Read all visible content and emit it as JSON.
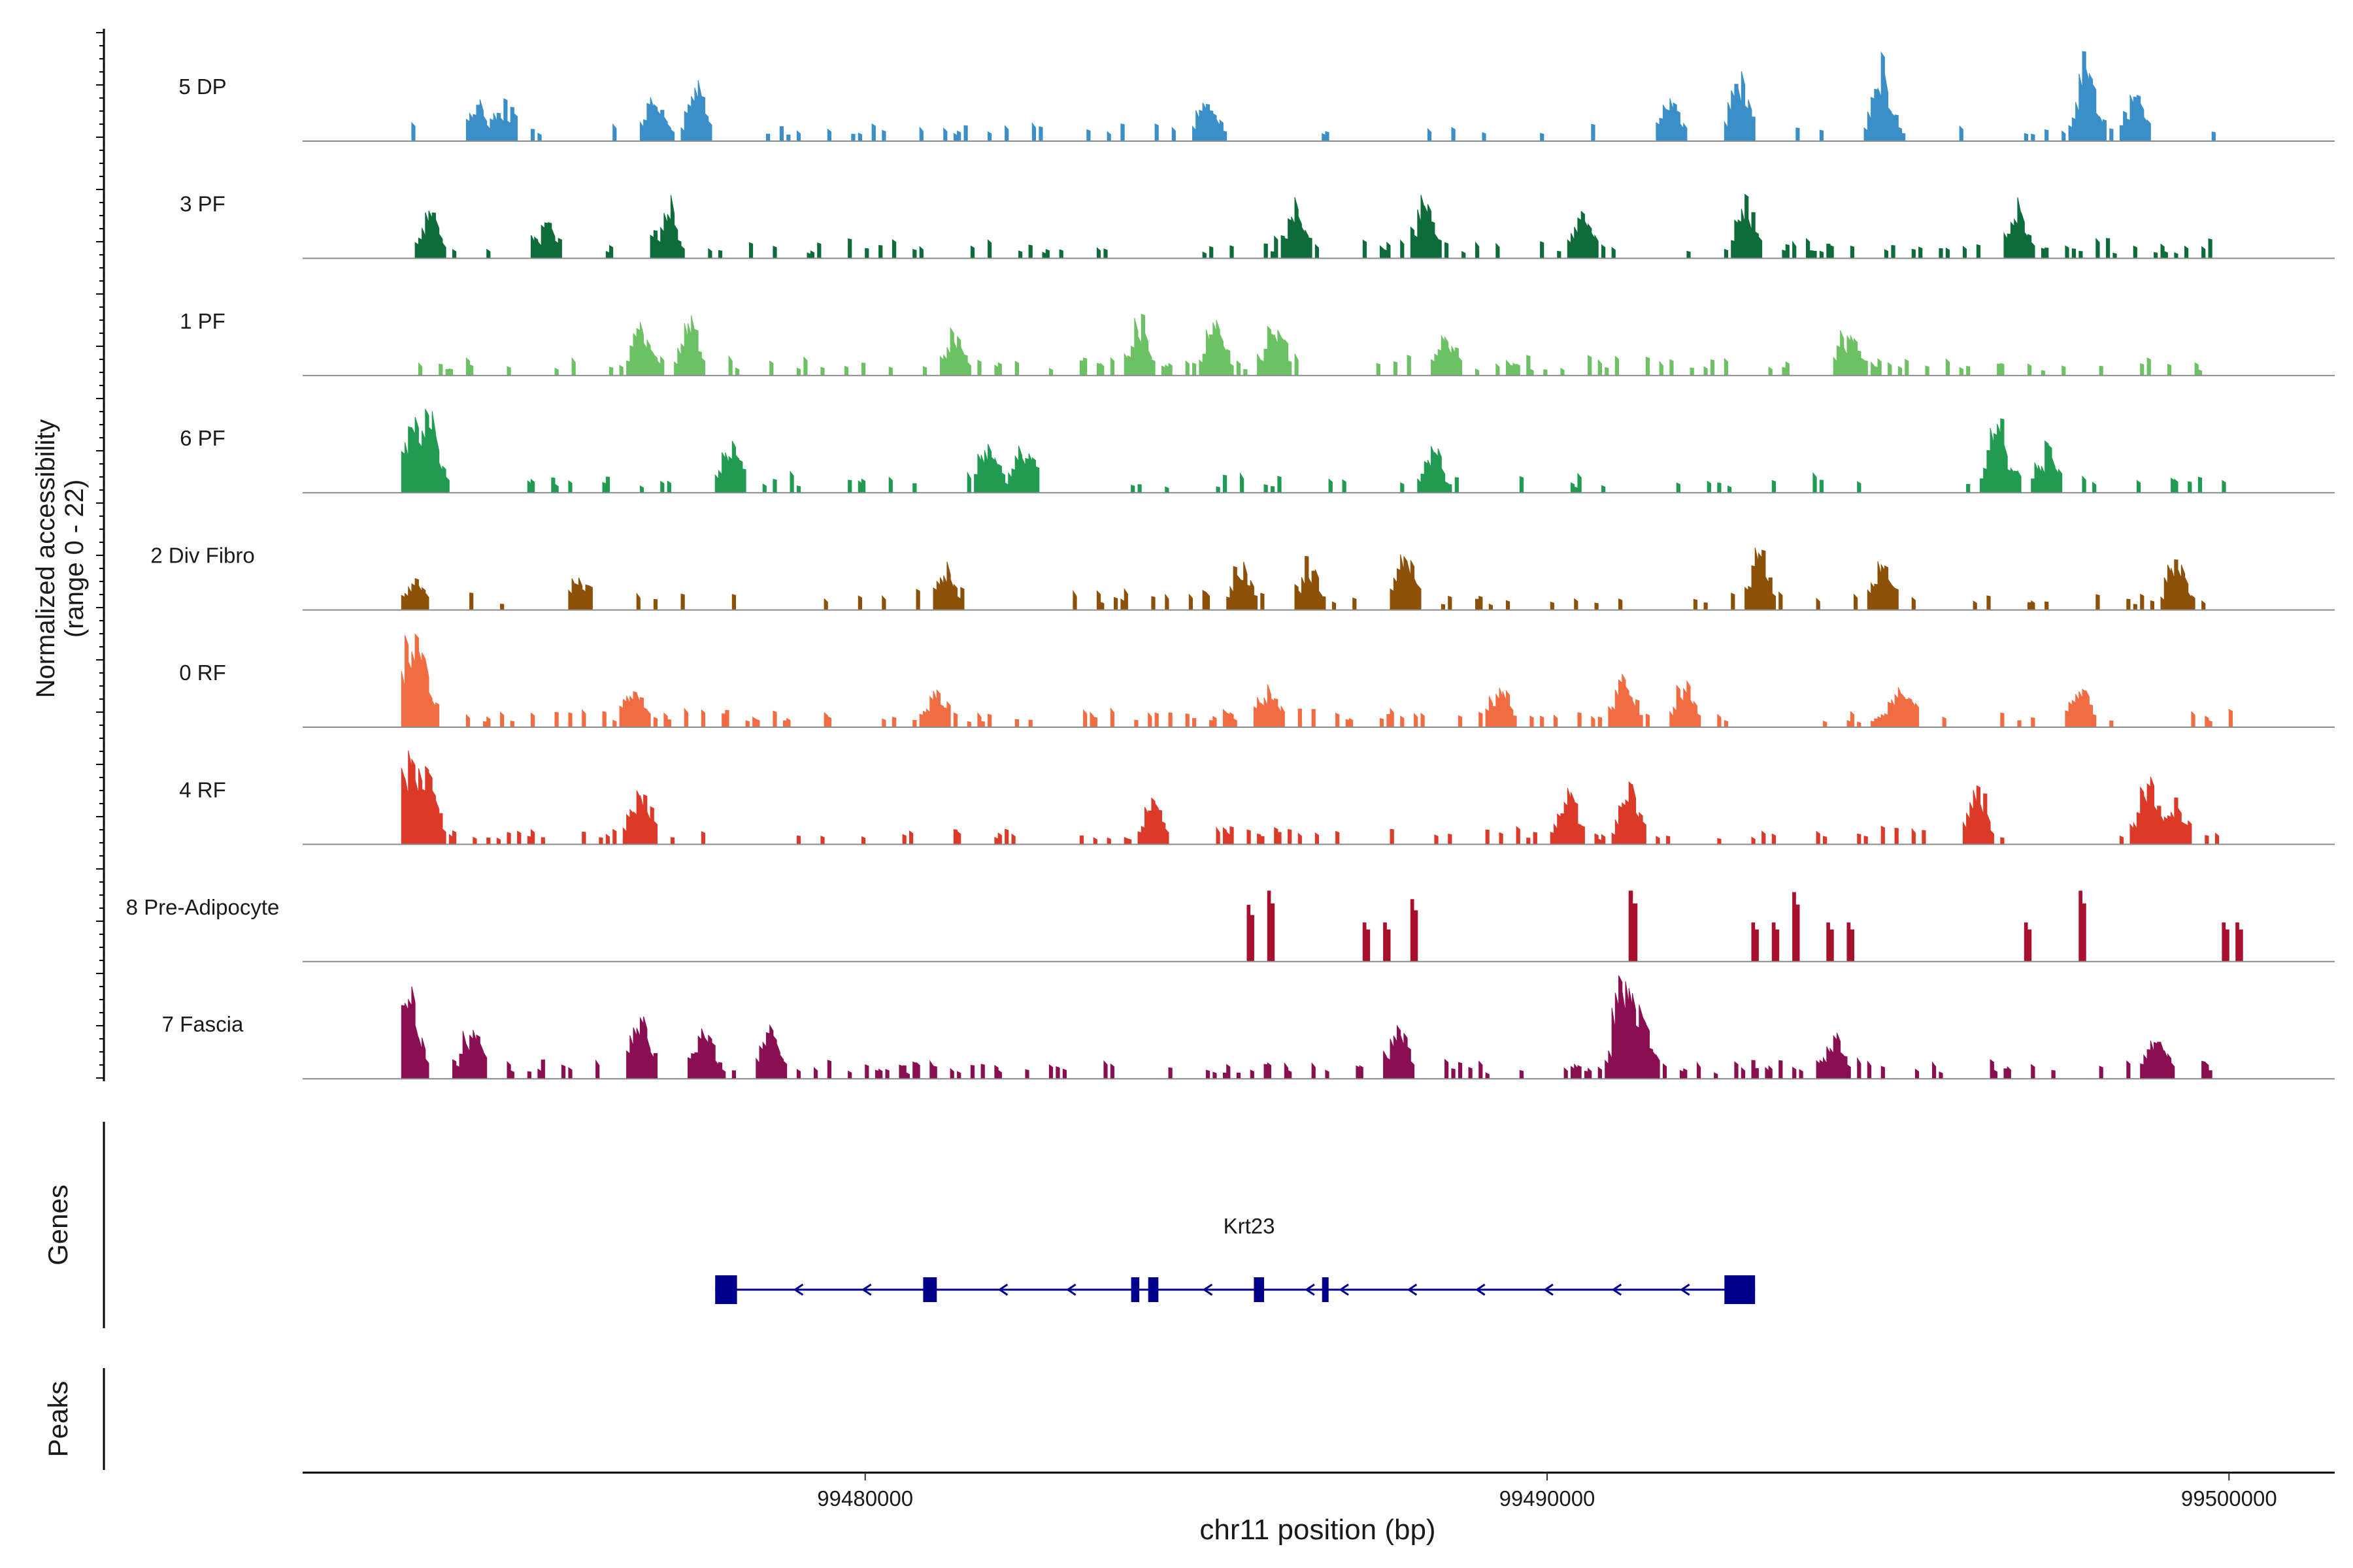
{
  "chart_data": {
    "type": "area",
    "title": "",
    "ylabel": "Normalized accessibility",
    "ylabel_range": "(range 0 - 22)",
    "ylim": [
      0,
      22
    ],
    "xlabel": "chr11 position (bp)",
    "xlim": [
      99471750,
      99501550
    ],
    "x_ticks": [
      99480000,
      99490000,
      99500000
    ],
    "x_tick_labels": [
      "99480000",
      "99490000",
      "99500000"
    ],
    "tracks": [
      {
        "name": "5 DP",
        "color": "#3a8fc8",
        "seed": 11,
        "density": 0.28,
        "peaks": [
          [
            99474300,
            0.22
          ],
          [
            99474700,
            0.22
          ],
          [
            99476900,
            0.3
          ],
          [
            99477500,
            0.45
          ],
          [
            99485000,
            0.3
          ],
          [
            99491800,
            0.3
          ],
          [
            99492800,
            0.55
          ],
          [
            99494900,
            0.62
          ],
          [
            99497900,
            0.8
          ],
          [
            99498600,
            0.35
          ]
        ]
      },
      {
        "name": "3 PF",
        "color": "#0e6b3a",
        "seed": 23,
        "density": 0.5,
        "peaks": [
          [
            99473600,
            0.45
          ],
          [
            99475300,
            0.25
          ],
          [
            99477100,
            0.45
          ],
          [
            99486300,
            0.45
          ],
          [
            99488200,
            0.5
          ],
          [
            99490500,
            0.35
          ],
          [
            99492900,
            0.45
          ],
          [
            99496900,
            0.4
          ]
        ]
      },
      {
        "name": "1 PF",
        "color": "#6cc164",
        "seed": 37,
        "density": 0.6,
        "peaks": [
          [
            99476700,
            0.45
          ],
          [
            99477400,
            0.5
          ],
          [
            99481300,
            0.35
          ],
          [
            99484000,
            0.45
          ],
          [
            99485100,
            0.5
          ],
          [
            99486000,
            0.45
          ],
          [
            99488500,
            0.3
          ],
          [
            99494400,
            0.35
          ]
        ]
      },
      {
        "name": "6 PF",
        "color": "#219a52",
        "seed": 53,
        "density": 0.32,
        "peaks": [
          [
            99473300,
            0.65
          ],
          [
            99473600,
            0.72
          ],
          [
            99478000,
            0.45
          ],
          [
            99481800,
            0.45
          ],
          [
            99482300,
            0.4
          ],
          [
            99488300,
            0.3
          ],
          [
            99496600,
            0.65
          ],
          [
            99497300,
            0.35
          ]
        ]
      },
      {
        "name": "2 Div Fibro",
        "color": "#8c5009",
        "seed": 71,
        "density": 0.32,
        "peaks": [
          [
            99473400,
            0.2
          ],
          [
            99475800,
            0.22
          ],
          [
            99481200,
            0.3
          ],
          [
            99485500,
            0.35
          ],
          [
            99486500,
            0.4
          ],
          [
            99487900,
            0.45
          ],
          [
            99493100,
            0.55
          ],
          [
            99494900,
            0.35
          ],
          [
            99499200,
            0.4
          ]
        ]
      },
      {
        "name": "0 RF",
        "color": "#f26c42",
        "seed": 89,
        "density": 0.55,
        "peaks": [
          [
            99473300,
            0.72
          ],
          [
            99473500,
            0.5
          ],
          [
            99476600,
            0.28
          ],
          [
            99481000,
            0.25
          ],
          [
            99485900,
            0.3
          ],
          [
            99489300,
            0.3
          ],
          [
            99491100,
            0.4
          ],
          [
            99492000,
            0.3
          ],
          [
            99495200,
            0.3
          ],
          [
            99497800,
            0.3
          ]
        ]
      },
      {
        "name": "4 RF",
        "color": "#dc3a28",
        "seed": 97,
        "density": 0.55,
        "peaks": [
          [
            99473300,
            0.95
          ],
          [
            99473600,
            0.55
          ],
          [
            99476700,
            0.5
          ],
          [
            99484200,
            0.35
          ],
          [
            99490300,
            0.35
          ],
          [
            99491200,
            0.5
          ],
          [
            99496300,
            0.55
          ],
          [
            99498800,
            0.6
          ],
          [
            99499200,
            0.3
          ]
        ]
      },
      {
        "name": "8 Pre-Adipocyte",
        "color": "#a8112e",
        "seed": 0,
        "density": 0,
        "blocks": [
          [
            99485600,
            100,
            0.8
          ],
          [
            99485900,
            100,
            1.0
          ],
          [
            99487300,
            100,
            0.55
          ],
          [
            99487600,
            100,
            0.55
          ],
          [
            99488000,
            100,
            0.88
          ],
          [
            99491200,
            120,
            1.0
          ],
          [
            99493000,
            100,
            0.55
          ],
          [
            99493300,
            100,
            0.55
          ],
          [
            99493600,
            100,
            0.98
          ],
          [
            99494100,
            100,
            0.55
          ],
          [
            99494400,
            100,
            0.55
          ],
          [
            99497000,
            100,
            0.55
          ],
          [
            99497800,
            100,
            1.0
          ],
          [
            99499900,
            100,
            0.55
          ],
          [
            99500100,
            100,
            0.55
          ]
        ]
      },
      {
        "name": "7 Fascia",
        "color": "#8a0f52",
        "seed": 131,
        "density": 0.55,
        "peaks": [
          [
            99473300,
            1.0
          ],
          [
            99474200,
            0.45
          ],
          [
            99476700,
            0.55
          ],
          [
            99477600,
            0.42
          ],
          [
            99478600,
            0.35
          ],
          [
            99487800,
            0.45
          ],
          [
            99491100,
            1.1
          ],
          [
            99491400,
            0.45
          ],
          [
            99494200,
            0.35
          ],
          [
            99498900,
            0.3
          ]
        ]
      }
    ],
    "gene": {
      "name": "Krt23",
      "strand": "-",
      "start": 99477800,
      "end": 99493050,
      "color": "#00008b",
      "exons": [
        [
          99477800,
          99478120
        ],
        [
          99480850,
          99481050
        ],
        [
          99483900,
          99484020
        ],
        [
          99484150,
          99484300
        ],
        [
          99485700,
          99485850
        ],
        [
          99486700,
          99486760
        ],
        [
          99492600,
          99493050
        ]
      ],
      "arrows": [
        99479000,
        99480000,
        99482000,
        99483000,
        99485000,
        99486500,
        99487000,
        99488000,
        99489000,
        99490000,
        99491000,
        99492000
      ]
    },
    "panels": {
      "genes": "Genes",
      "peaks": "Peaks"
    }
  }
}
